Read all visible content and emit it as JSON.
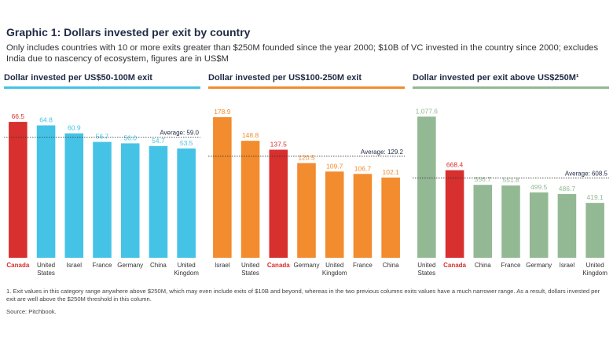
{
  "header": {
    "title": "Graphic 1: Dollars invested per exit by country",
    "subtitle": "Only includes countries with 10 or more exits greater than $250M founded since the year 2000; $10B of VC invested in the country since 2000; excludes India due to nascency of ecosystem, figures are in US$M"
  },
  "colors": {
    "highlight": "#d7302f",
    "text_dark": "#1f2a44"
  },
  "chart_data": [
    {
      "type": "bar",
      "title": "Dollar invested per US$50-100M exit",
      "color": "#45c3e6",
      "categories": [
        "Canada",
        "United States",
        "Israel",
        "France",
        "Germany",
        "China",
        "United Kingdom"
      ],
      "values": [
        66.5,
        64.8,
        60.9,
        56.7,
        56.0,
        54.7,
        53.5
      ],
      "value_labels": [
        "66.5",
        "64.8",
        "60.9",
        "56.7",
        "56.0",
        "54.7",
        "53.5"
      ],
      "highlight": "Canada",
      "average": 59.0,
      "average_label": "Average: 59.0",
      "ylim": [
        0,
        75
      ]
    },
    {
      "type": "bar",
      "title": "Dollar invested per US$100-250M exit",
      "color": "#f28c2e",
      "categories": [
        "Israel",
        "United States",
        "Canada",
        "Germany",
        "United Kingdom",
        "France",
        "China"
      ],
      "values": [
        178.9,
        148.8,
        137.5,
        120.5,
        109.7,
        106.7,
        102.1
      ],
      "value_labels": [
        "178.9",
        "148.8",
        "137.5",
        "120.5",
        "109.7",
        "106.7",
        "102.1"
      ],
      "highlight": "Canada",
      "average": 129.2,
      "average_label": "Average: 129.2",
      "ylim": [
        0,
        195
      ]
    },
    {
      "type": "bar",
      "title": "Dollar invested per exit above US$250M¹",
      "color": "#93b994",
      "categories": [
        "United States",
        "Canada",
        "China",
        "France",
        "Germany",
        "Israel",
        "United Kingdom"
      ],
      "values": [
        1077.6,
        668.4,
        556.7,
        551.8,
        499.5,
        486.7,
        419.1
      ],
      "value_labels": [
        "1,077.6",
        "668.4",
        "556.7",
        "551.8",
        "499.5",
        "486.7",
        "419.1"
      ],
      "highlight": "Canada",
      "average": 608.5,
      "average_label": "Average: 608.5",
      "ylim": [
        0,
        1170
      ]
    }
  ],
  "footer": {
    "footnote": "1.  Exit values in this category range anywhere above $250M, which may even include exits of $10B and beyond, whereas in the two previous columns exits values have a much narrower range. As a result, dollars invested per exit are well above the $250M threshold in this column.",
    "source": "Source: Pitchbook."
  }
}
